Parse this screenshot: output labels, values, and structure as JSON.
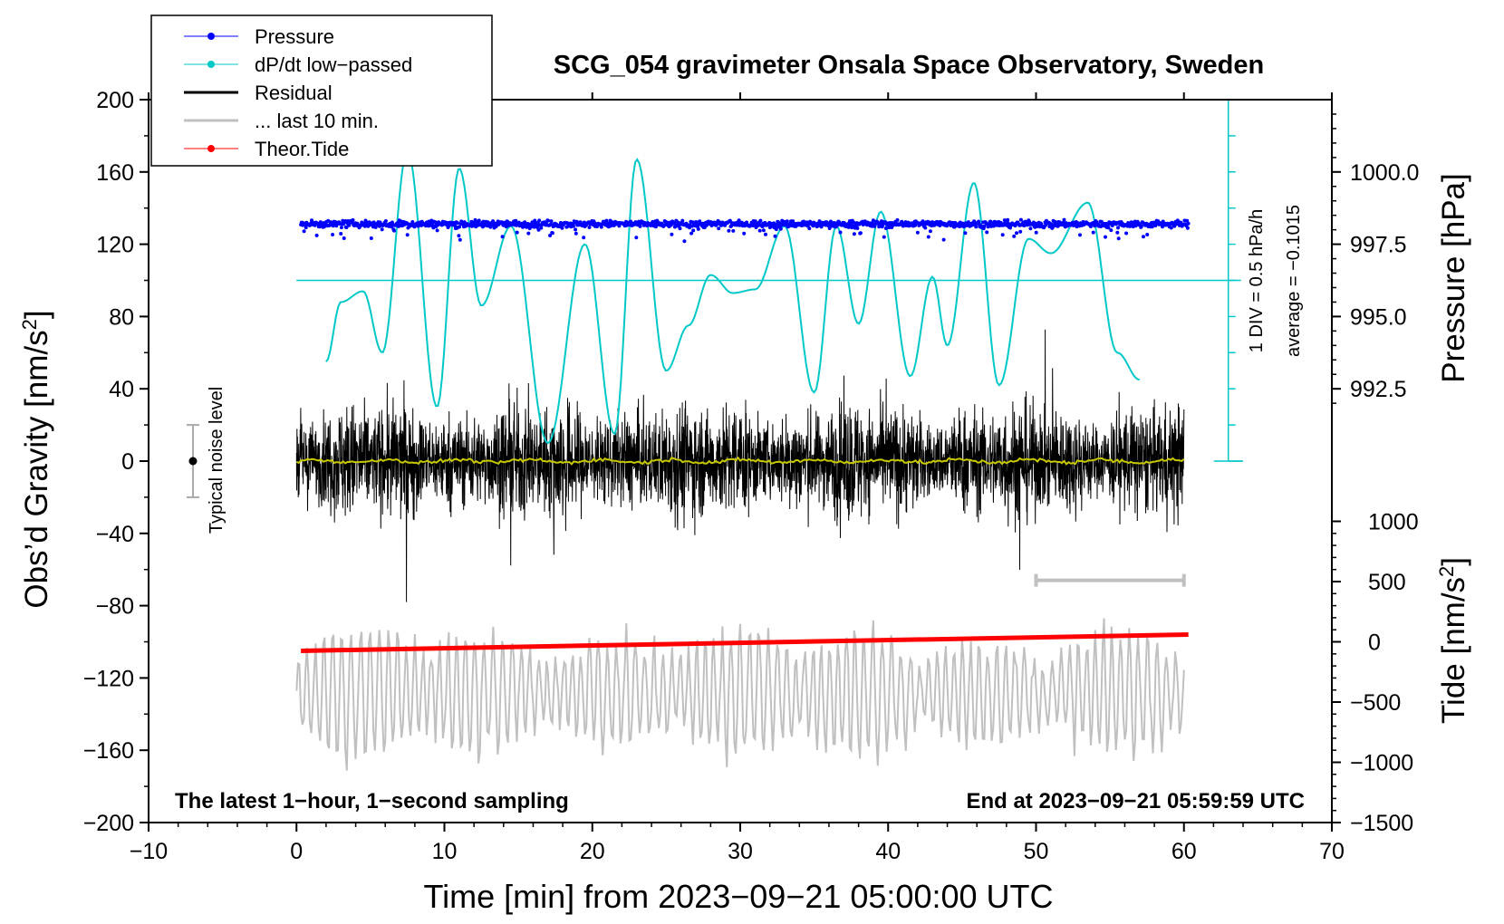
{
  "chart_data": {
    "type": "line",
    "title": "SCG_054 gravimeter Onsala Space Observatory, Sweden",
    "xlabel": "Time [min] from 2023−09−21 05:00:00 UTC",
    "ylabel_left": "Obs’d Gravity [nm/s",
    "ylabel_left_sup": "2",
    "ylabel_left_tail": "]",
    "ylabel_right_top": "Pressure [hPa]",
    "ylabel_right_bottom": "Tide [nm/s",
    "ylabel_right_bottom_sup": "2",
    "ylabel_right_bottom_tail": "]",
    "xlim": [
      -10,
      70
    ],
    "ylim_left": [
      -200,
      200
    ],
    "xticks": [
      -10,
      0,
      10,
      20,
      30,
      40,
      50,
      60,
      70
    ],
    "xtick_labels": [
      "−10",
      "0",
      "10",
      "20",
      "30",
      "40",
      "50",
      "60",
      "70"
    ],
    "yticks_left": [
      200,
      160,
      120,
      80,
      40,
      0,
      -40,
      -80,
      -120,
      -160,
      -200
    ],
    "ytick_labels_left": [
      "200",
      "160",
      "120",
      "80",
      "40",
      "0",
      "−40",
      "−80",
      "−120",
      "−160",
      "−200"
    ],
    "pressure_axis": {
      "ticks": [
        1000.0,
        997.5,
        995.0,
        992.5
      ],
      "tick_labels": [
        "1000.0",
        "997.5",
        "995.0",
        "992.5"
      ],
      "ref_value": 1000.0,
      "ref_gravity": 160,
      "gravity_per_hpa": 16
    },
    "tide_axis": {
      "ticks": [
        1000,
        500,
        0,
        -500,
        -1000,
        -1500
      ],
      "tick_labels": [
        "1000",
        "500",
        "0",
        "−500",
        "−1000",
        "−1500"
      ],
      "ref_value": 0,
      "ref_gravity": -100,
      "gravity_per_nms2": 0.066667
    },
    "series": [
      {
        "name": "Pressure",
        "color": "#0000ff",
        "style": "dots",
        "x_range": [
          0.3,
          60.3
        ],
        "approx_pressure_hpa": 998.2
      },
      {
        "name": "dP/dt low−passed",
        "color": "#00c8c8",
        "style": "line",
        "x": [
          2,
          3,
          4.5,
          5.8,
          7.5,
          9.5,
          11,
          12.5,
          14.5,
          17,
          19.5,
          21.5,
          23,
          25,
          26.5,
          28,
          29.5,
          31,
          33,
          35,
          36.5,
          38,
          39.5,
          41.5,
          43,
          44,
          45.8,
          47.5,
          49.5,
          51,
          53.5,
          55.5,
          57
        ],
        "y": [
          55,
          88,
          94,
          60,
          172,
          30,
          162,
          86,
          130,
          10,
          120,
          15,
          167,
          50,
          75,
          103,
          93,
          95,
          130,
          38,
          130,
          76,
          138,
          47,
          102,
          64,
          154,
          42,
          123,
          115,
          143,
          60,
          45
        ]
      },
      {
        "name": "Residual",
        "color": "#000000",
        "style": "noise",
        "x_range": [
          0,
          60
        ],
        "approx_amplitude_nms2": 40,
        "max_nms2": 80,
        "min_nms2": -78
      },
      {
        "name": "... last 10 min.",
        "color": "#c0c0c0",
        "style": "noise",
        "x_range": [
          0,
          60
        ],
        "center_nms2": -128,
        "approx_amplitude_nms2": 30
      },
      {
        "name": "Theor.Tide",
        "color": "#ff0000",
        "style": "line",
        "x": [
          0.3,
          60.3
        ],
        "tide_nms2": [
          -75,
          60
        ]
      }
    ],
    "smoothed_residual": {
      "color": "#c8c800",
      "center_nms2": 0
    },
    "noise_bar": {
      "label": "Typical noise level",
      "x": -7,
      "center": 0,
      "half_range": 20
    },
    "ten_min_bar": {
      "x_start": 50,
      "x_end": 60,
      "value_nms2": -66
    },
    "ddt_scale": {
      "label": "1 DIV = 0.5 hPa/h",
      "average_label": "average = −0.1015",
      "x": 63,
      "baseline_nms2": 100,
      "divisions": 10,
      "nms2_per_div": 20
    },
    "legend": {
      "placement": "top-left",
      "entries": [
        {
          "label": "Pressure",
          "color": "#0000ff",
          "marker": "dot"
        },
        {
          "label": "dP/dt low−passed",
          "color": "#00c8c8",
          "marker": "dot"
        },
        {
          "label": "Residual",
          "color": "#000000",
          "marker": "line"
        },
        {
          "label": "... last 10 min.",
          "color": "#c0c0c0",
          "marker": "line"
        },
        {
          "label": "Theor.Tide",
          "color": "#ff0000",
          "marker": "dot"
        }
      ]
    },
    "annotations": {
      "bottom_left": "The latest 1−hour, 1−second sampling",
      "bottom_right": "End at 2023−09−21 05:59:59 UTC"
    }
  }
}
